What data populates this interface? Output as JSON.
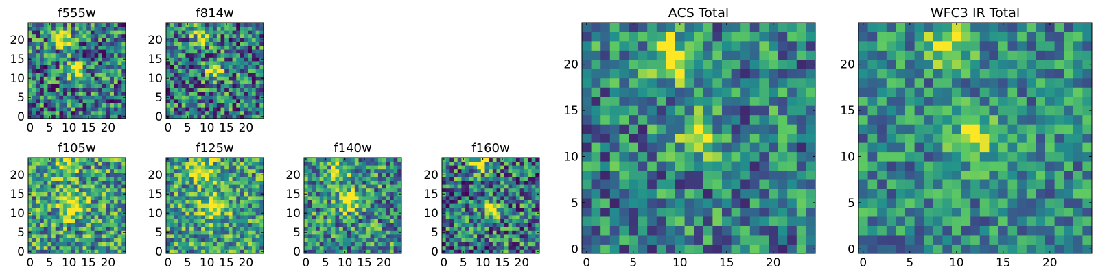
{
  "figure": {
    "colormap": [
      "#440154",
      "#3b528b",
      "#21908d",
      "#5dc963",
      "#fde725"
    ],
    "frame_color": "#000000"
  },
  "chart_data": [
    {
      "type": "heatmap",
      "title": "f555w",
      "grid": false,
      "xlim": [
        -0.5,
        24.5
      ],
      "ylim": [
        -0.5,
        24.5
      ],
      "xticks": [
        0,
        5,
        10,
        15,
        20
      ],
      "yticks": [
        0,
        5,
        10,
        15,
        20
      ],
      "shape": [
        25,
        25
      ],
      "value_range": [
        0,
        1
      ],
      "sources": [
        {
          "x": 9,
          "y": 20,
          "amplitude": 0.55,
          "sigma": 1.8
        },
        {
          "x": 12,
          "y": 12,
          "amplitude": 0.6,
          "sigma": 1.6
        }
      ],
      "background_level": 0.42,
      "noise_amplitude": 0.42,
      "noise_seed": 11
    },
    {
      "type": "heatmap",
      "title": "f814w",
      "grid": false,
      "xlim": [
        -0.5,
        24.5
      ],
      "ylim": [
        -0.5,
        24.5
      ],
      "xticks": [
        0,
        5,
        10,
        15,
        20
      ],
      "yticks": [
        0,
        5,
        10,
        15,
        20
      ],
      "shape": [
        25,
        25
      ],
      "value_range": [
        0,
        1
      ],
      "sources": [
        {
          "x": 9,
          "y": 21,
          "amplitude": 0.5,
          "sigma": 1.8
        },
        {
          "x": 12,
          "y": 12,
          "amplitude": 0.6,
          "sigma": 1.6
        }
      ],
      "background_level": 0.42,
      "noise_amplitude": 0.42,
      "noise_seed": 23
    },
    {
      "type": "heatmap",
      "title": "f105w",
      "grid": false,
      "xlim": [
        -0.5,
        24.5
      ],
      "ylim": [
        -0.5,
        24.5
      ],
      "xticks": [
        0,
        5,
        10,
        15,
        20
      ],
      "yticks": [
        0,
        5,
        10,
        15,
        20
      ],
      "shape": [
        25,
        25
      ],
      "value_range": [
        0,
        1
      ],
      "sources": [
        {
          "x": 9,
          "y": 22,
          "amplitude": 0.4,
          "sigma": 2.2
        },
        {
          "x": 11,
          "y": 12,
          "amplitude": 0.5,
          "sigma": 2.2
        }
      ],
      "background_level": 0.55,
      "noise_amplitude": 0.38,
      "noise_seed": 37
    },
    {
      "type": "heatmap",
      "title": "f125w",
      "grid": false,
      "xlim": [
        -0.5,
        24.5
      ],
      "ylim": [
        -0.5,
        24.5
      ],
      "xticks": [
        0,
        5,
        10,
        15,
        20
      ],
      "yticks": [
        0,
        5,
        10,
        15,
        20
      ],
      "shape": [
        25,
        25
      ],
      "value_range": [
        0,
        1
      ],
      "sources": [
        {
          "x": 9,
          "y": 21,
          "amplitude": 0.4,
          "sigma": 2.4
        },
        {
          "x": 12,
          "y": 12,
          "amplitude": 0.45,
          "sigma": 2.4
        }
      ],
      "background_level": 0.55,
      "noise_amplitude": 0.36,
      "noise_seed": 41
    },
    {
      "type": "heatmap",
      "title": "f140w",
      "grid": false,
      "xlim": [
        -0.5,
        24.5
      ],
      "ylim": [
        -0.5,
        24.5
      ],
      "xticks": [
        0,
        5,
        10,
        15,
        20
      ],
      "yticks": [
        0,
        5,
        10,
        15,
        20
      ],
      "shape": [
        25,
        25
      ],
      "value_range": [
        0,
        1
      ],
      "sources": [
        {
          "x": 9,
          "y": 21,
          "amplitude": 0.4,
          "sigma": 2.0
        },
        {
          "x": 11,
          "y": 13,
          "amplitude": 0.5,
          "sigma": 2.0
        }
      ],
      "background_level": 0.5,
      "noise_amplitude": 0.38,
      "noise_seed": 53
    },
    {
      "type": "heatmap",
      "title": "f160w",
      "grid": false,
      "xlim": [
        -0.5,
        24.5
      ],
      "ylim": [
        -0.5,
        24.5
      ],
      "xticks": [
        0,
        5,
        10,
        15,
        20
      ],
      "yticks": [
        0,
        5,
        10,
        15,
        20
      ],
      "shape": [
        25,
        25
      ],
      "value_range": [
        0,
        1
      ],
      "sources": [
        {
          "x": 9,
          "y": 23,
          "amplitude": 0.55,
          "sigma": 1.6
        },
        {
          "x": 12,
          "y": 11,
          "amplitude": 0.55,
          "sigma": 1.6
        }
      ],
      "background_level": 0.42,
      "noise_amplitude": 0.42,
      "noise_seed": 67
    },
    {
      "type": "heatmap",
      "title": "ACS Total",
      "grid": false,
      "xlim": [
        -0.5,
        24.5
      ],
      "ylim": [
        -0.5,
        24.5
      ],
      "xticks": [
        0,
        5,
        10,
        15,
        20
      ],
      "yticks": [
        0,
        5,
        10,
        15,
        20
      ],
      "shape": [
        25,
        25
      ],
      "value_range": [
        0,
        1
      ],
      "sources": [
        {
          "x": 9,
          "y": 20,
          "amplitude": 0.45,
          "sigma": 1.5
        },
        {
          "x": 9,
          "y": 22,
          "amplitude": 0.3,
          "sigma": 1.5
        },
        {
          "x": 12,
          "y": 12,
          "amplitude": 0.5,
          "sigma": 1.6
        }
      ],
      "background_level": 0.45,
      "noise_amplitude": 0.34,
      "noise_seed": 79
    },
    {
      "type": "heatmap",
      "title": "WFC3 IR Total",
      "grid": false,
      "xlim": [
        -0.5,
        24.5
      ],
      "ylim": [
        -0.5,
        24.5
      ],
      "xticks": [
        0,
        5,
        10,
        15,
        20
      ],
      "yticks": [
        0,
        5,
        10,
        15,
        20
      ],
      "shape": [
        25,
        25
      ],
      "value_range": [
        0,
        1
      ],
      "sources": [
        {
          "x": 9,
          "y": 22,
          "amplitude": 0.5,
          "sigma": 1.7
        },
        {
          "x": 12,
          "y": 12,
          "amplitude": 0.45,
          "sigma": 1.8
        }
      ],
      "background_level": 0.48,
      "noise_amplitude": 0.28,
      "noise_seed": 97
    }
  ]
}
